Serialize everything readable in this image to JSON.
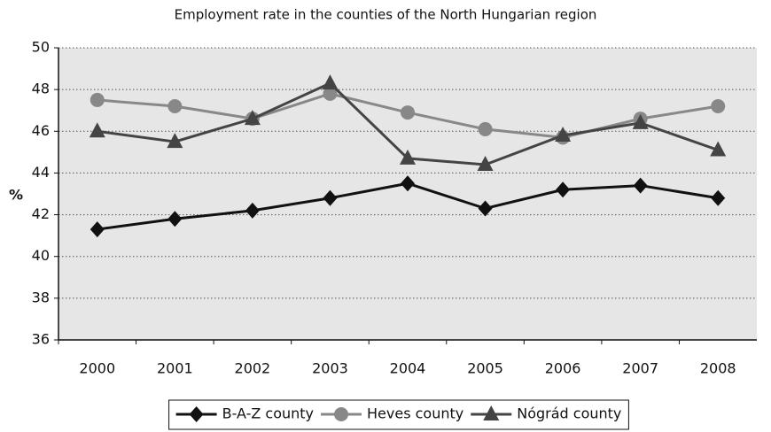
{
  "chart_data": {
    "type": "line",
    "title": "Employment rate in the counties of the North Hungarian region",
    "y_label": "%",
    "categories": [
      "2000",
      "2001",
      "2002",
      "2003",
      "2004",
      "2005",
      "2006",
      "2007",
      "2008"
    ],
    "series": [
      {
        "name": "B-A-Z county",
        "color": "#111111",
        "marker": "diamond",
        "values": [
          41.3,
          41.8,
          42.2,
          42.8,
          43.5,
          42.3,
          43.2,
          43.4,
          42.8
        ]
      },
      {
        "name": "Heves county",
        "color": "#888888",
        "marker": "circle",
        "values": [
          47.5,
          47.2,
          46.6,
          47.8,
          46.9,
          46.1,
          45.7,
          46.6,
          47.2
        ]
      },
      {
        "name": "Nógrád county",
        "color": "#444444",
        "marker": "triangle",
        "values": [
          46.0,
          45.5,
          46.6,
          48.3,
          44.7,
          44.4,
          45.8,
          46.4,
          45.1
        ]
      }
    ],
    "ylim": [
      36,
      50
    ],
    "yticks": [
      36,
      38,
      40,
      42,
      44,
      46,
      48,
      50
    ],
    "grid": true,
    "legend": "bottom"
  }
}
